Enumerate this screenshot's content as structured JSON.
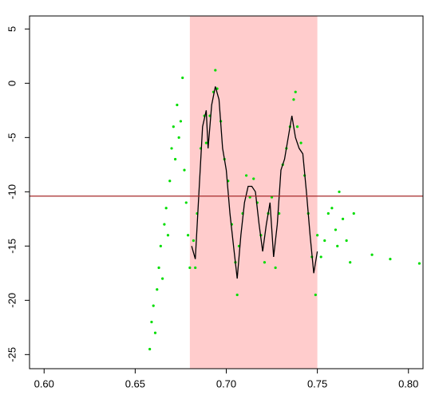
{
  "chart_data": {
    "type": "scatter",
    "xlim": [
      0.592,
      0.808
    ],
    "ylim": [
      -26.3,
      6.2
    ],
    "xticks": [
      {
        "value": 0.6,
        "label": "0.60"
      },
      {
        "value": 0.65,
        "label": "0.65"
      },
      {
        "value": 0.7,
        "label": "0.70"
      },
      {
        "value": 0.75,
        "label": "0.75"
      },
      {
        "value": 0.8,
        "label": "0.80"
      }
    ],
    "yticks": [
      5,
      0,
      -5,
      -10,
      -15,
      -20,
      -25
    ],
    "shade": {
      "xrange": [
        0.68,
        0.75
      ],
      "color": "#ffcccc"
    },
    "hline": {
      "y": -10.4,
      "color": "#a52a2a"
    },
    "series": [
      {
        "mode": "points",
        "color": "#00dd00",
        "x": [
          0.658,
          0.659,
          0.66,
          0.661,
          0.662,
          0.663,
          0.664,
          0.665,
          0.666,
          0.667,
          0.668,
          0.669,
          0.67,
          0.671,
          0.672,
          0.673,
          0.674,
          0.675,
          0.676,
          0.677,
          0.678,
          0.679,
          0.68,
          0.682,
          0.683,
          0.684,
          0.686,
          0.688,
          0.689,
          0.691,
          0.693,
          0.694,
          0.695,
          0.697,
          0.699,
          0.701,
          0.703,
          0.705,
          0.706,
          0.707,
          0.709,
          0.711,
          0.713,
          0.715,
          0.717,
          0.719,
          0.721,
          0.723,
          0.725,
          0.727,
          0.729,
          0.731,
          0.733,
          0.735,
          0.737,
          0.738,
          0.739,
          0.741,
          0.743,
          0.745,
          0.747,
          0.749,
          0.75,
          0.752,
          0.754,
          0.756,
          0.758,
          0.76,
          0.761,
          0.762,
          0.764,
          0.766,
          0.768,
          0.77,
          0.78,
          0.79,
          0.806
        ],
        "y": [
          -24.5,
          -22,
          -20.5,
          -23,
          -19,
          -17,
          -15,
          -18,
          -13,
          -11.5,
          -14,
          -9,
          -6,
          -4,
          -7,
          -2,
          -5,
          -3.5,
          0.5,
          -8,
          -11,
          -14,
          -17,
          -14.5,
          -17,
          -12,
          -6,
          -3,
          -5.5,
          -3,
          -0.8,
          1.2,
          -0.5,
          -3.5,
          -7,
          -9,
          -13,
          -16.5,
          -19.5,
          -15,
          -12,
          -8.5,
          -10.5,
          -8.8,
          -11,
          -14,
          -16.5,
          -12,
          -10.5,
          -17,
          -12,
          -7.5,
          -6,
          -4,
          -1.5,
          -0.8,
          -4,
          -5.5,
          -8.5,
          -12,
          -16,
          -19.5,
          -14,
          -16,
          -14.5,
          -12,
          -11.5,
          -13.5,
          -15,
          -10,
          -12.5,
          -14.5,
          -16.5,
          -12,
          -15.8,
          -16.2,
          -16.6
        ]
      },
      {
        "mode": "line",
        "color": "#000000",
        "x": [
          0.681,
          0.683,
          0.685,
          0.687,
          0.689,
          0.69,
          0.692,
          0.694,
          0.696,
          0.698,
          0.7,
          0.702,
          0.704,
          0.706,
          0.708,
          0.71,
          0.712,
          0.714,
          0.716,
          0.718,
          0.72,
          0.722,
          0.724,
          0.726,
          0.728,
          0.73,
          0.732,
          0.734,
          0.736,
          0.738,
          0.74,
          0.742,
          0.744,
          0.746,
          0.748,
          0.75
        ],
        "y": [
          -15,
          -16.2,
          -10,
          -4,
          -2.5,
          -6,
          -2,
          -0.3,
          -1.5,
          -6,
          -8,
          -12,
          -15,
          -18,
          -14,
          -11,
          -9.5,
          -9.5,
          -10,
          -13,
          -15.5,
          -13,
          -11,
          -16,
          -13,
          -8,
          -7,
          -5,
          -3,
          -5,
          -6,
          -6.5,
          -10,
          -14,
          -17.5,
          -15.5
        ]
      }
    ]
  }
}
